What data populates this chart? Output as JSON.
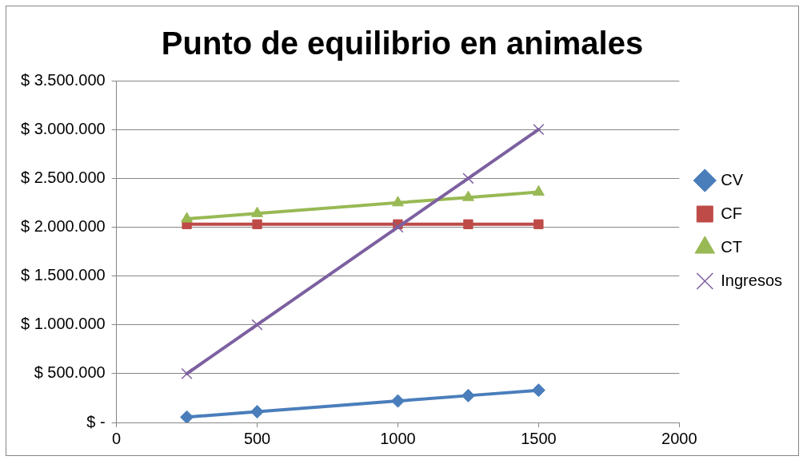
{
  "chart_data": {
    "type": "line",
    "title": "Punto de equilibrio en animales",
    "x": [
      250,
      500,
      1000,
      1250,
      1500
    ],
    "series": [
      {
        "name": "CV",
        "color": "#4a7ebb",
        "marker": "diamond",
        "values": [
          55000,
          110000,
          220000,
          275000,
          330000
        ]
      },
      {
        "name": "CF",
        "color": "#be4b48",
        "marker": "square",
        "values": [
          2030000,
          2030000,
          2030000,
          2030000,
          2030000
        ]
      },
      {
        "name": "CT",
        "color": "#98b954",
        "marker": "triangle",
        "values": [
          2085000,
          2140000,
          2250000,
          2305000,
          2360000
        ]
      },
      {
        "name": "Ingresos",
        "color": "#7d60a0",
        "marker": "cross",
        "values": [
          500000,
          1000000,
          2000000,
          2500000,
          3000000
        ]
      }
    ],
    "xlim": [
      0,
      2000
    ],
    "xticks": [
      0,
      500,
      1000,
      1500,
      2000
    ],
    "ylim": [
      0,
      3500000
    ],
    "yticks": [
      {
        "value": 0,
        "label": "$ -"
      },
      {
        "value": 500000,
        "label": "$ 500.000"
      },
      {
        "value": 1000000,
        "label": "$ 1.000.000"
      },
      {
        "value": 1500000,
        "label": "$ 1.500.000"
      },
      {
        "value": 2000000,
        "label": "$ 2.000.000"
      },
      {
        "value": 2500000,
        "label": "$ 2.500.000"
      },
      {
        "value": 3000000,
        "label": "$ 3.000.000"
      },
      {
        "value": 3500000,
        "label": "$ 3.500.000"
      }
    ],
    "grid": "y",
    "legend": "right",
    "line_style": "solid"
  }
}
